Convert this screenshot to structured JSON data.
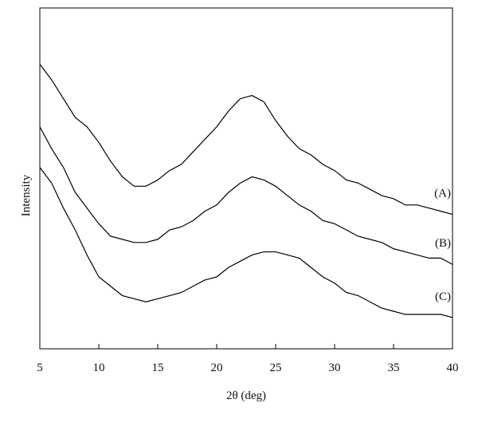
{
  "chart_data": {
    "type": "line",
    "x_label": "2θ (deg)",
    "y_label": "Intensity",
    "x": [
      5,
      6,
      7,
      8,
      9,
      10,
      11,
      12,
      13,
      14,
      15,
      16,
      17,
      18,
      19,
      20,
      21,
      22,
      23,
      24,
      25,
      26,
      27,
      28,
      29,
      30,
      31,
      32,
      33,
      34,
      35,
      36,
      37,
      38,
      39,
      40
    ],
    "series": [
      {
        "name": "(A)",
        "color": "#000000",
        "values": [
          91,
          86,
          80,
          74,
          71,
          66,
          60,
          55,
          52,
          52,
          54,
          57,
          59,
          63,
          67,
          71,
          76,
          80,
          81,
          79,
          73,
          68,
          64,
          62,
          59,
          57,
          54,
          53,
          51,
          49,
          48,
          46,
          46,
          45,
          44,
          43
        ]
      },
      {
        "name": "(B)",
        "color": "#000000",
        "values": [
          71,
          64,
          58,
          50,
          45,
          40,
          36,
          35,
          34,
          34,
          35,
          38,
          39,
          41,
          44,
          46,
          50,
          53,
          55,
          54,
          52,
          49,
          46,
          44,
          41,
          40,
          38,
          36,
          35,
          34,
          32,
          31,
          30,
          29,
          29,
          27
        ]
      },
      {
        "name": "(C)",
        "color": "#000000",
        "values": [
          58,
          53,
          45,
          38,
          30,
          23,
          20,
          17,
          16,
          15,
          16,
          17,
          18,
          20,
          22,
          23,
          26,
          28,
          30,
          31,
          31,
          30,
          29,
          26,
          23,
          21,
          18,
          17,
          15,
          13,
          12,
          11,
          11,
          11,
          11,
          10
        ]
      }
    ],
    "xlim": [
      5,
      40
    ],
    "xticks": [
      5,
      10,
      15,
      20,
      25,
      30,
      35,
      40
    ],
    "ylim": [
      0,
      109
    ]
  }
}
